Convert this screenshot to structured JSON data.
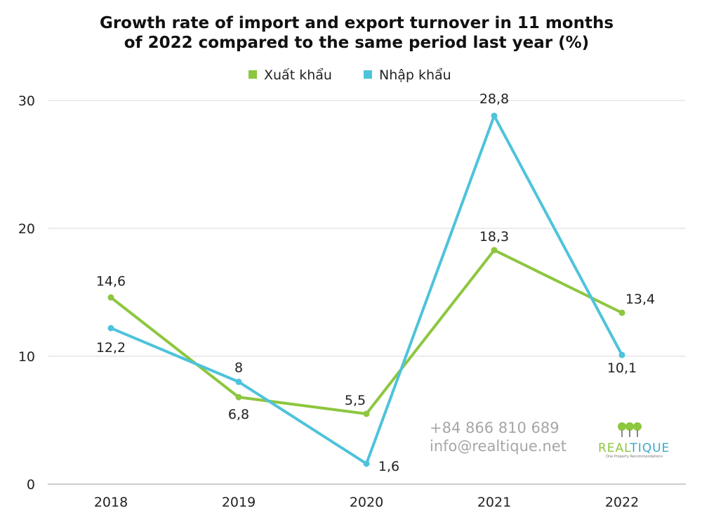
{
  "colors": {
    "export": "#8dc63f",
    "import": "#4ec3db",
    "grid": "#d9d9d9",
    "axis": "#999999",
    "logo_green": "#8dc63f",
    "logo_teal": "#3aa9c8"
  },
  "chart_data": {
    "type": "line",
    "title_lines": [
      "Growth rate of import and export turnover in 11 months",
      "of 2022 compared to the same period last year (%)"
    ],
    "categories": [
      "2018",
      "2019",
      "2020",
      "2021",
      "2022"
    ],
    "series": [
      {
        "name": "Xuất khẩu",
        "values": [
          14.6,
          6.8,
          5.5,
          18.3,
          13.4
        ],
        "labels": [
          "14,6",
          "6,8",
          "5,5",
          "18,3",
          "13,4"
        ]
      },
      {
        "name": "Nhập khẩu",
        "values": [
          12.2,
          8,
          1.6,
          28.8,
          10.1
        ],
        "labels": [
          "12,2",
          "8",
          "1,6",
          "28,8",
          "10,1"
        ]
      }
    ],
    "ylim": [
      0,
      30
    ],
    "yticks": [
      0,
      10,
      20,
      30
    ],
    "ytick_labels": [
      "0",
      "10",
      "20",
      "30"
    ],
    "grid": true,
    "legend_position": "top-center"
  },
  "watermark": {
    "phone": "+84 866 810 689",
    "email": "info@realtique.net",
    "logo_real": "REAL",
    "logo_tique": "TIQUE",
    "logo_tagline": "One Property Recommendations"
  }
}
